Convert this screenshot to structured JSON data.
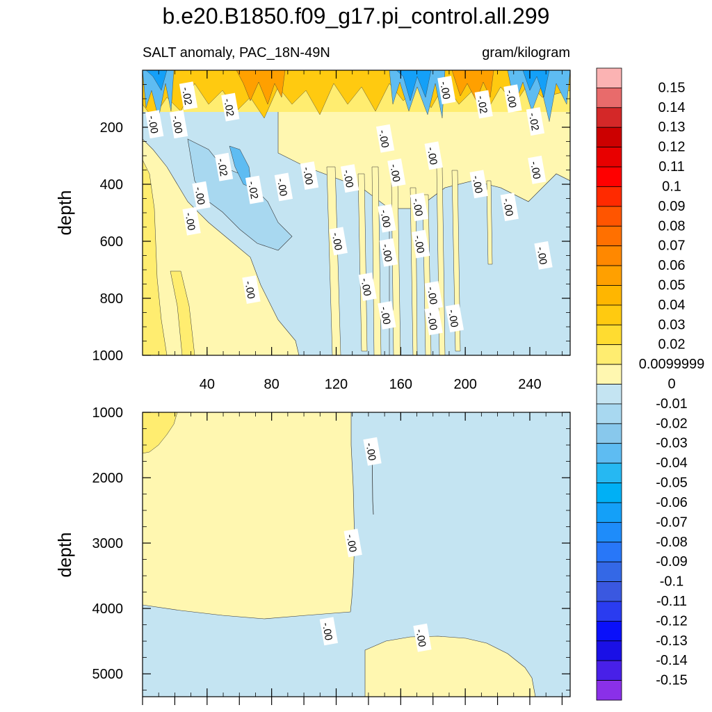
{
  "chart_data": [
    {
      "type": "contour",
      "panel": "upper",
      "title": "b.e20.B1850.f09_g17.pi_control.all.299",
      "subtitle_left": "SALT anomaly, PAC_18N-49N",
      "subtitle_right": "gram/kilogram",
      "xlabel": "",
      "ylabel": "depth",
      "xlim": [
        0,
        265
      ],
      "ylim": [
        0,
        1000
      ],
      "y_inverted": true,
      "x_ticks": [
        "40",
        "80",
        "120",
        "160",
        "200",
        "240"
      ],
      "x_tick_values": [
        40,
        80,
        120,
        160,
        200,
        240
      ],
      "y_ticks": [
        "200",
        "400",
        "600",
        "800",
        "1000"
      ],
      "y_tick_values": [
        200,
        400,
        600,
        800,
        1000
      ],
      "contour_labels": [
        {
          "text": "-.02",
          "x": 28,
          "y": 90
        },
        {
          "text": "-.02",
          "x": 54,
          "y": 130
        },
        {
          "text": "-.00",
          "x": 7,
          "y": 190
        },
        {
          "text": "-.00",
          "x": 22,
          "y": 190
        },
        {
          "text": "-.02",
          "x": 50,
          "y": 340
        },
        {
          "text": "-.00",
          "x": 36,
          "y": 440
        },
        {
          "text": "-.00",
          "x": 30,
          "y": 530
        },
        {
          "text": "-.02",
          "x": 69,
          "y": 420
        },
        {
          "text": "-.00",
          "x": 87,
          "y": 410
        },
        {
          "text": "-.00",
          "x": 103,
          "y": 370
        },
        {
          "text": "-.00",
          "x": 128,
          "y": 380
        },
        {
          "text": "-.00",
          "x": 150,
          "y": 240
        },
        {
          "text": "-.00",
          "x": 157,
          "y": 360
        },
        {
          "text": "-.00",
          "x": 180,
          "y": 300
        },
        {
          "text": "-.00",
          "x": 188,
          "y": 70
        },
        {
          "text": "-.02",
          "x": 211,
          "y": 120
        },
        {
          "text": "-.00",
          "x": 229,
          "y": 100
        },
        {
          "text": "-.02",
          "x": 243,
          "y": 180
        },
        {
          "text": "-.00",
          "x": 244,
          "y": 350
        },
        {
          "text": "-.00",
          "x": 208,
          "y": 400
        },
        {
          "text": "-.00",
          "x": 227,
          "y": 480
        },
        {
          "text": "-.00",
          "x": 171,
          "y": 480
        },
        {
          "text": "-.00",
          "x": 151,
          "y": 520
        },
        {
          "text": "-.00",
          "x": 121,
          "y": 600
        },
        {
          "text": "-.00",
          "x": 152,
          "y": 640
        },
        {
          "text": "-.00",
          "x": 172,
          "y": 610
        },
        {
          "text": "-.00",
          "x": 248,
          "y": 650
        },
        {
          "text": "-.00",
          "x": 67,
          "y": 770
        },
        {
          "text": "-.00",
          "x": 139,
          "y": 760
        },
        {
          "text": "-.00",
          "x": 180,
          "y": 790
        },
        {
          "text": "-.00",
          "x": 151,
          "y": 860
        },
        {
          "text": "-.00",
          "x": 180,
          "y": 880
        },
        {
          "text": "-.00",
          "x": 193,
          "y": 870
        }
      ]
    },
    {
      "type": "contour",
      "panel": "lower",
      "xlabel": "",
      "ylabel": "depth",
      "xlim": [
        0,
        265
      ],
      "ylim": [
        1000,
        5350
      ],
      "y_inverted": true,
      "y_ticks": [
        "1000",
        "2000",
        "3000",
        "4000",
        "5000"
      ],
      "y_tick_values": [
        1000,
        2000,
        3000,
        4000,
        5000
      ],
      "contour_labels": [
        {
          "text": "-.00",
          "x": 142,
          "y": 1600
        },
        {
          "text": "-.00",
          "x": 130,
          "y": 3000
        },
        {
          "text": "-.00",
          "x": 115,
          "y": 4350
        },
        {
          "text": "-.00",
          "x": 173,
          "y": 4450
        }
      ]
    }
  ],
  "colorbar": {
    "labels": [
      "0.15",
      "0.14",
      "0.13",
      "0.12",
      "0.11",
      "0.1",
      "0.09",
      "0.08",
      "0.07",
      "0.06",
      "0.05",
      "0.04",
      "0.03",
      "0.02",
      "0.0099999",
      "0",
      "-0.01",
      "-0.02",
      "-0.03",
      "-0.04",
      "-0.05",
      "-0.06",
      "-0.07",
      "-0.08",
      "-0.09",
      "-0.1",
      "-0.11",
      "-0.12",
      "-0.13",
      "-0.14",
      "-0.15"
    ],
    "colors": [
      "#fbb3b3",
      "#e86b6b",
      "#d42828",
      "#cc0000",
      "#e80000",
      "#ff0000",
      "#ff2a00",
      "#ff5500",
      "#ff7000",
      "#ff8800",
      "#ffa000",
      "#ffb600",
      "#ffca10",
      "#ffdc30",
      "#ffed70",
      "#fff7b0",
      "#c4e4f2",
      "#a8d8f0",
      "#88c8ec",
      "#5ebcf2",
      "#26b8f2",
      "#00b0f5",
      "#14a0f8",
      "#1e8cfa",
      "#2877f8",
      "#3468e6",
      "#3a58e0",
      "#2a3cf0",
      "#0a10fa",
      "#1a10e6",
      "#4820e8",
      "#8a30e8"
    ]
  }
}
